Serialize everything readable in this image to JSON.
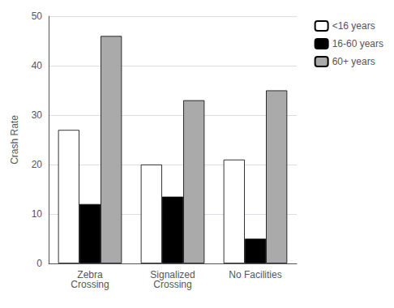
{
  "chart_data": {
    "type": "bar",
    "categories": [
      "Zebra\nCrossing",
      "Signalized\nCrossing",
      "No Facilities"
    ],
    "series": [
      {
        "name": "<16 years",
        "color": "#ffffff",
        "values": [
          27,
          20,
          21
        ]
      },
      {
        "name": "16-60 years",
        "color": "#000000",
        "values": [
          12,
          13.5,
          5
        ]
      },
      {
        "name": "60+ years",
        "color": "#aaaaaa",
        "values": [
          46,
          33,
          35
        ]
      }
    ],
    "ylabel": "Crash Rate",
    "ylim": [
      0,
      50
    ],
    "yticks": [
      0,
      10,
      20,
      30,
      40,
      50
    ],
    "grid": true,
    "legend": "upper right"
  }
}
